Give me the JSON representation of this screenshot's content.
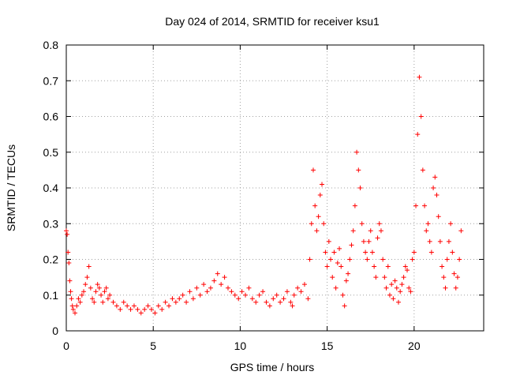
{
  "chart_data": {
    "type": "scatter",
    "title": "Day 024 of 2014, SRMTID for receiver ksu1",
    "xlabel": "GPS time / hours",
    "ylabel": "SRMTID / TECUs",
    "xlim": [
      0,
      24
    ],
    "ylim": [
      0,
      0.8
    ],
    "xticks": [
      0,
      5,
      10,
      15,
      20
    ],
    "yticks": [
      0,
      0.1,
      0.2,
      0.3,
      0.4,
      0.5,
      0.6,
      0.7,
      0.8
    ],
    "xtick_labels": [
      "0",
      "5",
      "10",
      "15",
      "20"
    ],
    "ytick_labels": [
      "0",
      "0.1",
      "0.2",
      "0.3",
      "0.4",
      "0.5",
      "0.6",
      "0.7",
      "0.8"
    ],
    "grid": true,
    "marker": "+",
    "color": "#ff0000",
    "series": [
      {
        "name": "SRMTID",
        "x": [
          0.0,
          0.05,
          0.1,
          0.15,
          0.2,
          0.25,
          0.3,
          0.35,
          0.4,
          0.5,
          0.6,
          0.7,
          0.8,
          0.9,
          1.0,
          1.1,
          1.2,
          1.3,
          1.4,
          1.5,
          1.6,
          1.7,
          1.8,
          1.9,
          2.0,
          2.1,
          2.2,
          2.3,
          2.4,
          2.5,
          2.7,
          2.9,
          3.1,
          3.3,
          3.5,
          3.7,
          3.9,
          4.1,
          4.3,
          4.5,
          4.7,
          4.9,
          5.1,
          5.3,
          5.5,
          5.7,
          5.9,
          6.1,
          6.3,
          6.5,
          6.7,
          6.9,
          7.1,
          7.3,
          7.5,
          7.7,
          7.9,
          8.1,
          8.3,
          8.5,
          8.7,
          8.9,
          9.1,
          9.3,
          9.5,
          9.7,
          9.9,
          10.1,
          10.3,
          10.5,
          10.7,
          10.9,
          11.1,
          11.3,
          11.5,
          11.7,
          11.9,
          12.1,
          12.3,
          12.5,
          12.7,
          12.9,
          13.0,
          13.1,
          13.3,
          13.5,
          13.7,
          13.9,
          14.0,
          14.1,
          14.2,
          14.3,
          14.4,
          14.5,
          14.6,
          14.7,
          14.8,
          14.9,
          15.0,
          15.1,
          15.2,
          15.3,
          15.4,
          15.5,
          15.6,
          15.7,
          15.8,
          15.9,
          16.0,
          16.1,
          16.2,
          16.3,
          16.4,
          16.5,
          16.6,
          16.7,
          16.8,
          16.9,
          17.0,
          17.1,
          17.2,
          17.3,
          17.4,
          17.5,
          17.6,
          17.7,
          17.8,
          17.9,
          18.0,
          18.1,
          18.2,
          18.3,
          18.4,
          18.5,
          18.6,
          18.7,
          18.8,
          18.9,
          19.0,
          19.1,
          19.2,
          19.3,
          19.4,
          19.5,
          19.6,
          19.7,
          19.8,
          19.9,
          20.0,
          20.1,
          20.2,
          20.3,
          20.4,
          20.5,
          20.6,
          20.7,
          20.8,
          20.9,
          21.0,
          21.1,
          21.2,
          21.3,
          21.4,
          21.5,
          21.6,
          21.7,
          21.8,
          21.9,
          22.0,
          22.1,
          22.2,
          22.3,
          22.4,
          22.5,
          22.6,
          22.7
        ],
        "y": [
          0.28,
          0.27,
          0.22,
          0.19,
          0.14,
          0.11,
          0.09,
          0.07,
          0.06,
          0.05,
          0.07,
          0.09,
          0.08,
          0.1,
          0.11,
          0.13,
          0.15,
          0.18,
          0.12,
          0.09,
          0.08,
          0.11,
          0.13,
          0.12,
          0.1,
          0.08,
          0.11,
          0.12,
          0.09,
          0.1,
          0.08,
          0.07,
          0.06,
          0.08,
          0.07,
          0.06,
          0.07,
          0.06,
          0.05,
          0.06,
          0.07,
          0.06,
          0.05,
          0.07,
          0.06,
          0.08,
          0.07,
          0.09,
          0.08,
          0.09,
          0.1,
          0.08,
          0.11,
          0.09,
          0.12,
          0.1,
          0.13,
          0.11,
          0.12,
          0.14,
          0.16,
          0.13,
          0.15,
          0.12,
          0.11,
          0.1,
          0.09,
          0.11,
          0.1,
          0.12,
          0.09,
          0.08,
          0.1,
          0.11,
          0.08,
          0.07,
          0.09,
          0.1,
          0.08,
          0.09,
          0.11,
          0.08,
          0.07,
          0.1,
          0.12,
          0.11,
          0.13,
          0.09,
          0.2,
          0.3,
          0.45,
          0.35,
          0.28,
          0.32,
          0.38,
          0.41,
          0.3,
          0.22,
          0.18,
          0.25,
          0.2,
          0.15,
          0.22,
          0.12,
          0.19,
          0.23,
          0.18,
          0.1,
          0.07,
          0.14,
          0.16,
          0.2,
          0.24,
          0.28,
          0.35,
          0.5,
          0.45,
          0.4,
          0.3,
          0.25,
          0.22,
          0.2,
          0.25,
          0.28,
          0.22,
          0.18,
          0.15,
          0.26,
          0.3,
          0.28,
          0.2,
          0.15,
          0.12,
          0.18,
          0.1,
          0.13,
          0.09,
          0.14,
          0.12,
          0.08,
          0.11,
          0.13,
          0.15,
          0.18,
          0.17,
          0.12,
          0.11,
          0.2,
          0.22,
          0.35,
          0.55,
          0.71,
          0.6,
          0.45,
          0.35,
          0.28,
          0.3,
          0.25,
          0.22,
          0.4,
          0.43,
          0.38,
          0.32,
          0.25,
          0.18,
          0.15,
          0.12,
          0.2,
          0.25,
          0.3,
          0.22,
          0.16,
          0.12,
          0.15,
          0.2,
          0.28
        ]
      }
    ]
  }
}
